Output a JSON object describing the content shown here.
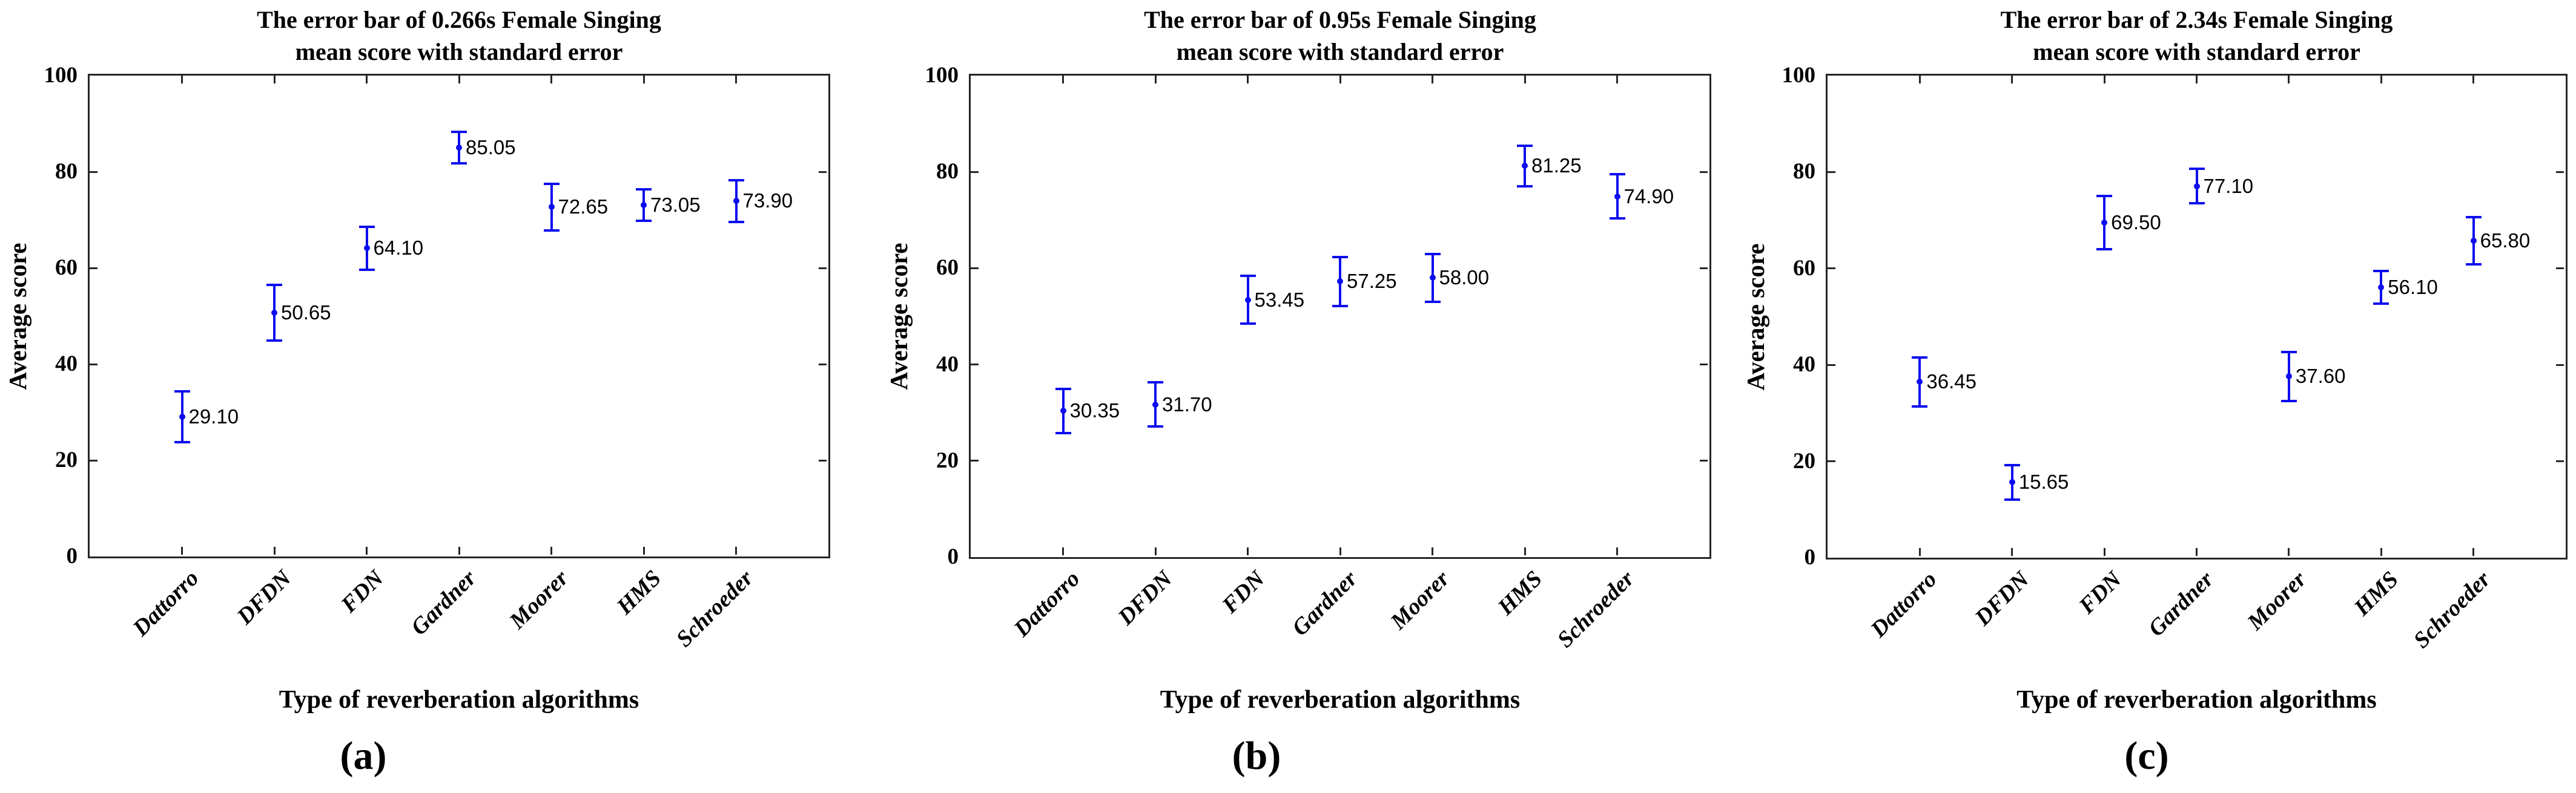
{
  "figure": {
    "background": "#ffffff",
    "axis_color": "#262626",
    "text_color": "#000000"
  },
  "chart_data": [
    {
      "type": "scatter",
      "subtype": "errorbar",
      "title_lines": [
        "The error bar of 0.266s Female Singing",
        "mean score with standard error"
      ],
      "xlabel": "Type of reverberation algorithms",
      "ylabel": "Average score",
      "sublabel": "(a)",
      "categories": [
        "Dattorro",
        "DFDN",
        "FDN",
        "Gardner",
        "Moorer",
        "HMS",
        "Schroeder"
      ],
      "values": [
        29.1,
        50.65,
        64.1,
        85.05,
        72.65,
        73.05,
        73.9
      ],
      "stderr": [
        5.3,
        5.8,
        4.5,
        3.3,
        4.8,
        3.3,
        4.4
      ],
      "value_labels": [
        "29.10",
        "50.65",
        "64.10",
        "85.05",
        "72.65",
        "73.05",
        "73.90"
      ],
      "ylim": [
        0,
        100
      ],
      "yticks": [
        0,
        20,
        40,
        60,
        80,
        100
      ],
      "grid": false,
      "legend": null,
      "marker_color": "#0d0dee"
    },
    {
      "type": "scatter",
      "subtype": "errorbar",
      "title_lines": [
        "The error bar of 0.95s Female Singing",
        "mean score with standard error"
      ],
      "xlabel": "Type of reverberation algorithms",
      "ylabel": "Average score",
      "sublabel": "(b)",
      "categories": [
        "Dattorro",
        "DFDN",
        "FDN",
        "Gardner",
        "Moorer",
        "HMS",
        "Schroeder"
      ],
      "values": [
        30.35,
        31.7,
        53.45,
        57.25,
        58.0,
        81.25,
        74.9
      ],
      "stderr": [
        4.6,
        4.6,
        5.0,
        5.1,
        5.0,
        4.2,
        4.6
      ],
      "value_labels": [
        "30.35",
        "31.70",
        "53.45",
        "57.25",
        "58.00",
        "81.25",
        "74.90"
      ],
      "ylim": [
        0,
        100
      ],
      "yticks": [
        0,
        20,
        40,
        60,
        80,
        100
      ],
      "grid": false,
      "legend": null,
      "marker_color": "#0d0dee"
    },
    {
      "type": "scatter",
      "subtype": "errorbar",
      "title_lines": [
        "The error bar of 2.34s Female Singing",
        "mean score with standard error"
      ],
      "xlabel": "Type of reverberation algorithms",
      "ylabel": "Average score",
      "sublabel": "(c)",
      "categories": [
        "Dattorro",
        "DFDN",
        "FDN",
        "Gardner",
        "Moorer",
        "HMS",
        "Schroeder"
      ],
      "values": [
        36.45,
        15.65,
        69.5,
        77.1,
        37.6,
        56.1,
        65.8
      ],
      "stderr": [
        5.1,
        3.6,
        5.5,
        3.6,
        5.1,
        3.4,
        4.9
      ],
      "value_labels": [
        "36.45",
        "15.65",
        "69.50",
        "77.10",
        "37.60",
        "56.10",
        "65.80"
      ],
      "ylim": [
        0,
        100
      ],
      "yticks": [
        0,
        20,
        40,
        60,
        80,
        100
      ],
      "grid": false,
      "legend": null,
      "marker_color": "#0d0dee"
    }
  ]
}
